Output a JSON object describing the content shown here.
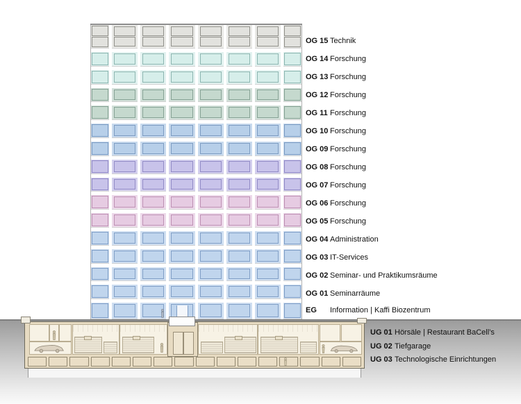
{
  "diagram": {
    "type": "building-section",
    "floors_above": [
      {
        "code": "OG 15",
        "label": "Technik",
        "band": "#e9e9e6",
        "glass": "#e2e2de",
        "frame": "#90908a",
        "style": "double"
      },
      {
        "code": "OG 14",
        "label": "Forschung",
        "band": "#e2f2f0",
        "glass": "#d6eeea",
        "frame": "#8bb5b0"
      },
      {
        "code": "OG 13",
        "label": "Forschung",
        "band": "#e2f2f0",
        "glass": "#d6eeea",
        "frame": "#8bb5b0"
      },
      {
        "code": "OG 12",
        "label": "Forschung",
        "band": "#d2e0d9",
        "glass": "#c5d9ce",
        "frame": "#85a294"
      },
      {
        "code": "OG 11",
        "label": "Forschung",
        "band": "#d2e0d9",
        "glass": "#c5d9ce",
        "frame": "#85a294"
      },
      {
        "code": "OG 10",
        "label": "Forschung",
        "band": "#c8daee",
        "glass": "#b7cfe9",
        "frame": "#7b9bc2"
      },
      {
        "code": "OG 09",
        "label": "Forschung",
        "band": "#c8daee",
        "glass": "#b7cfe9",
        "frame": "#7b9bc2"
      },
      {
        "code": "OG 08",
        "label": "Forschung",
        "band": "#d3cfee",
        "glass": "#c8c3ea",
        "frame": "#918ac6"
      },
      {
        "code": "OG 07",
        "label": "Forschung",
        "band": "#d3cfee",
        "glass": "#c8c3ea",
        "frame": "#918ac6"
      },
      {
        "code": "OG 06",
        "label": "Forschung",
        "band": "#edd9ea",
        "glass": "#e6cbe2",
        "frame": "#bd8fb3"
      },
      {
        "code": "OG 05",
        "label": "Forschung",
        "band": "#edd9ea",
        "glass": "#e6cbe2",
        "frame": "#bd8fb3"
      },
      {
        "code": "OG 04",
        "label": "Administration",
        "band": "#cedef1",
        "glass": "#c0d5ed",
        "frame": "#7f9ec6"
      },
      {
        "code": "OG 03",
        "label": "IT-Services",
        "band": "#cedef1",
        "glass": "#c0d5ed",
        "frame": "#7f9ec6"
      },
      {
        "code": "OG 02",
        "label": "Seminar- und Praktikumsräume",
        "band": "#cedef1",
        "glass": "#c0d5ed",
        "frame": "#7f9ec6"
      },
      {
        "code": "OG 01",
        "label": "Seminarräume",
        "band": "#cedef1",
        "glass": "#c0d5ed",
        "frame": "#7f9ec6"
      },
      {
        "code": "EG",
        "label": "Information | Kaffi Biozentrum",
        "band": "#cedef1",
        "glass": "#c0d5ed",
        "frame": "#7f9ec6",
        "style": "entrance"
      }
    ],
    "floors_below": [
      {
        "code": "UG 01",
        "label": "Hörsäle | Restaurant BaCell’s"
      },
      {
        "code": "UG 02",
        "label": "Tiefgarage"
      },
      {
        "code": "UG 03",
        "label": "Technologische Einrichtungen"
      }
    ],
    "colors": {
      "ground_top": "#9c9c9c",
      "underground_wall": "#e7dbc2",
      "underground_room": "#f7f2e5",
      "label_text": "#111111"
    }
  }
}
